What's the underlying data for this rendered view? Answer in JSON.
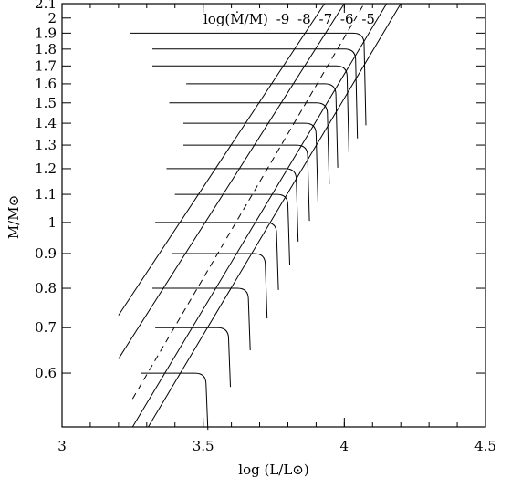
{
  "chart_data": {
    "type": "line",
    "xlabel": "log (L/L⊙)",
    "ylabel": "M/M⊙",
    "xlim": [
      3.0,
      4.5
    ],
    "ylim": [
      0.5,
      2.1
    ],
    "yscale": "log",
    "grid": false,
    "xticks": [
      3.0,
      3.5,
      4.0,
      4.5
    ],
    "xtick_labels": [
      "3",
      "3.5",
      "4",
      "4.5"
    ],
    "yticks": [
      0.6,
      0.7,
      0.8,
      0.9,
      1.0,
      1.1,
      1.2,
      1.3,
      1.4,
      1.5,
      1.6,
      1.7,
      1.8,
      1.9,
      2.0,
      2.1
    ],
    "ytick_labels": [
      "0.6",
      "0.7",
      "0.8",
      "0.9",
      "1",
      "1.1",
      "1.2",
      "1.3",
      "1.4",
      "1.5",
      "1.6",
      "1.7",
      "1.8",
      "1.9",
      "2",
      "2.1"
    ],
    "annotation": {
      "prefix": "log(Ṁ/M)",
      "values": [
        "-9",
        "-8",
        "-7",
        "-6",
        "-5"
      ]
    },
    "mass_loss_lines": [
      {
        "log_mdot": -9,
        "style": "solid",
        "points": [
          [
            3.2,
            0.73
          ],
          [
            3.93,
            2.1
          ]
        ]
      },
      {
        "log_mdot": -8,
        "style": "solid",
        "points": [
          [
            3.2,
            0.63
          ],
          [
            4.0,
            2.1
          ]
        ]
      },
      {
        "log_mdot": -7,
        "style": "dashed",
        "points": [
          [
            3.25,
            0.55
          ],
          [
            4.07,
            2.1
          ]
        ]
      },
      {
        "log_mdot": -6,
        "style": "solid",
        "points": [
          [
            3.25,
            0.5
          ],
          [
            4.15,
            2.1
          ]
        ]
      },
      {
        "log_mdot": -5,
        "style": "solid",
        "points": [
          [
            3.28,
            0.48
          ],
          [
            4.2,
            2.1
          ]
        ]
      }
    ],
    "tracks": [
      {
        "mass": 1.9,
        "log_l_start": 3.24,
        "log_l_end": 4.07
      },
      {
        "mass": 1.8,
        "log_l_start": 3.32,
        "log_l_end": 4.04
      },
      {
        "mass": 1.7,
        "log_l_start": 3.32,
        "log_l_end": 4.01
      },
      {
        "mass": 1.6,
        "log_l_start": 3.44,
        "log_l_end": 3.97
      },
      {
        "mass": 1.5,
        "log_l_start": 3.38,
        "log_l_end": 3.94
      },
      {
        "mass": 1.4,
        "log_l_start": 3.43,
        "log_l_end": 3.9
      },
      {
        "mass": 1.3,
        "log_l_start": 3.43,
        "log_l_end": 3.87
      },
      {
        "mass": 1.2,
        "log_l_start": 3.37,
        "log_l_end": 3.83
      },
      {
        "mass": 1.1,
        "log_l_start": 3.4,
        "log_l_end": 3.8
      },
      {
        "mass": 1.0,
        "log_l_start": 3.33,
        "log_l_end": 3.76
      },
      {
        "mass": 0.9,
        "log_l_start": 3.39,
        "log_l_end": 3.72
      },
      {
        "mass": 0.8,
        "log_l_start": 3.32,
        "log_l_end": 3.66
      },
      {
        "mass": 0.7,
        "log_l_start": 3.33,
        "log_l_end": 3.59
      },
      {
        "mass": 0.6,
        "log_l_start": 3.28,
        "log_l_end": 3.51
      }
    ]
  }
}
